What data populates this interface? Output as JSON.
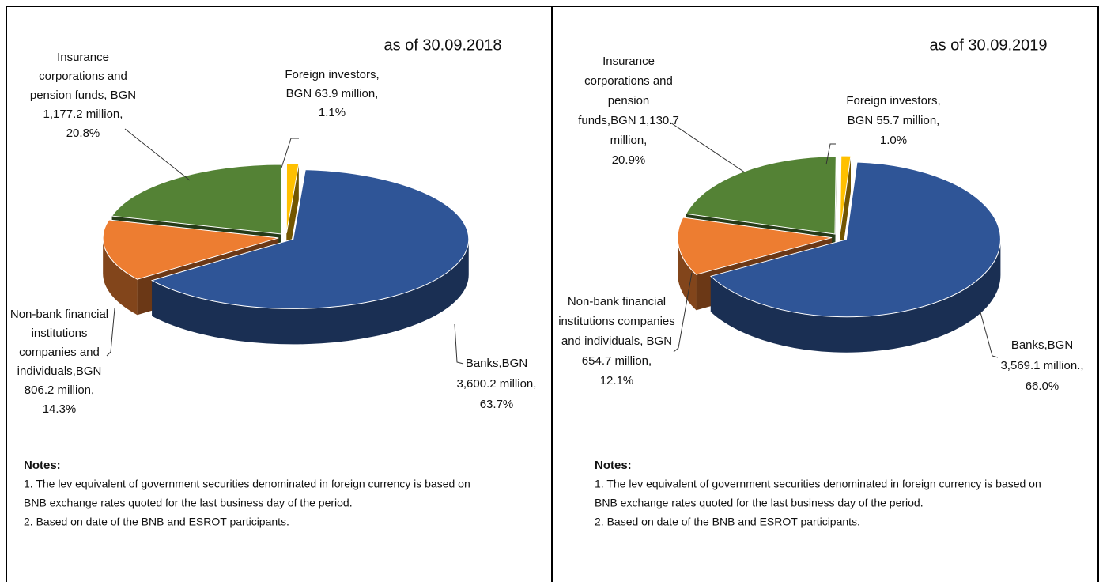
{
  "chart_data": [
    {
      "type": "pie",
      "title": "as of 30.09.2018",
      "values": [
        63.7,
        14.3,
        20.8,
        1.1
      ],
      "value_labels": [
        [
          "Banks,BGN",
          "3,600.2 million,",
          "63.7%"
        ],
        [
          "Non-bank financial",
          "institutions",
          "companies  and",
          "individuals,BGN",
          "806.2 million,",
          "14.3%"
        ],
        [
          "Insurance",
          "corporations and",
          "pension funds, BGN",
          "1,177.2 million,",
          "20.8%"
        ],
        [
          "Foreign investors,",
          "BGN  63.9 million,",
          "1.1%"
        ]
      ],
      "colors": [
        "#2f5597",
        "#ed7d31",
        "#548235",
        "#ffc000"
      ],
      "notes": {
        "title": "Notes:",
        "lines": [
          "1. The lev equivalent of government securities denominated in foreign currency is based on",
          "BNB exchange rates quoted for the last business day of the period.",
          "2. Based on date of the BNB and ESROT  participants."
        ]
      }
    },
    {
      "type": "pie",
      "title": "as of 30.09.2019",
      "values": [
        66.0,
        12.1,
        20.9,
        1.0
      ],
      "value_labels": [
        [
          "Banks,BGN",
          "3,569.1 million.,",
          "66.0%"
        ],
        [
          "Non-bank financial",
          "institutions companies",
          "and individuals,  BGN",
          "654.7 million,",
          "12.1%"
        ],
        [
          "Insurance",
          "corporations and",
          "pension",
          "funds,BGN 1,130.7",
          "million,",
          "20.9%"
        ],
        [
          "Foreign investors,",
          "BGN 55.7 million,",
          "1.0%"
        ]
      ],
      "colors": [
        "#2f5597",
        "#ed7d31",
        "#548235",
        "#ffc000"
      ],
      "notes": {
        "title": "Notes:",
        "lines": [
          "1. The lev equivalent of government securities denominated in foreign currency is based on",
          "BNB exchange rates quoted for the last business day of the period.",
          "2. Based on date of the BNB and ESROT  participants."
        ]
      }
    }
  ]
}
